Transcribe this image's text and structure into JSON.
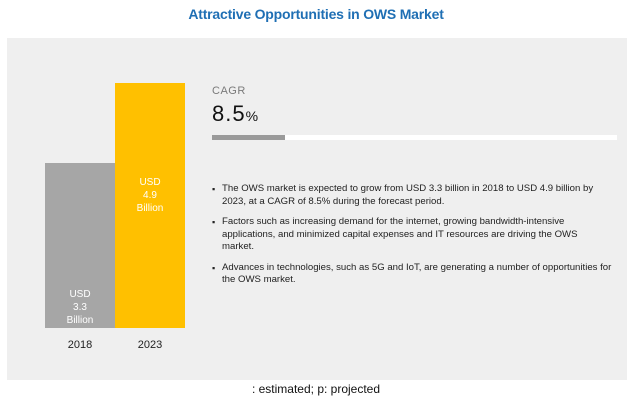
{
  "title": "Attractive Opportunities in OWS Market",
  "chart_data": {
    "type": "bar",
    "categories": [
      "2018",
      "2023"
    ],
    "values": [
      3.3,
      4.9
    ],
    "bar_labels": [
      "USD\n3.3\nBillion",
      "USD\n4.9\nBillion"
    ],
    "bar_colors": [
      "#a6a6a6",
      "#ffc000"
    ],
    "ylim": [
      0,
      6
    ],
    "grid": false
  },
  "cagr": {
    "label": "CAGR",
    "value_number": "8.5",
    "value_unit": "%",
    "fill_fraction": 0.18,
    "fill_color": "#9a9a9a"
  },
  "bullets": [
    "The OWS market is expected to grow from USD 3.3 billion in 2018 to USD 4.9 billion by 2023, at a CAGR of 8.5% during the forecast period.",
    "Factors such as increasing demand for the internet, growing bandwidth-intensive applications, and minimized capital expenses and IT resources are driving the OWS market.",
    "Advances in technologies, such as 5G and IoT, are generating a number of opportunities for the OWS market."
  ],
  "footnote": ": estimated; p: projected"
}
